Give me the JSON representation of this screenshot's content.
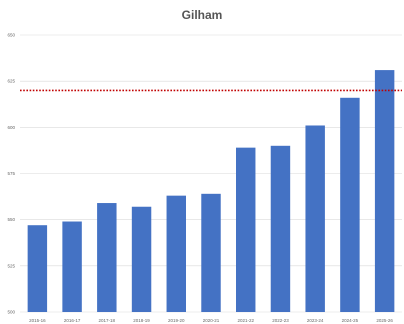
{
  "chart_data": {
    "type": "bar",
    "title": "Gilham",
    "xlabel": "",
    "ylabel": "",
    "categories": [
      "2015-16",
      "2016-17",
      "2017-18",
      "2018-19",
      "2019-20",
      "2020-21",
      "2021-22",
      "2022-23",
      "2023-24",
      "2024-25",
      "2025-26"
    ],
    "values": [
      547,
      549,
      559,
      557,
      563,
      564,
      589,
      590,
      601,
      616,
      631
    ],
    "ylim": [
      500,
      650
    ],
    "yticks": [
      "500",
      "525",
      "550",
      "575",
      "600",
      "625",
      "650"
    ],
    "reference_line": 620,
    "grid": true,
    "colors": {
      "bar": "#4472c4",
      "reference_line": "#c00000",
      "grid": "#d9d9d9"
    }
  }
}
